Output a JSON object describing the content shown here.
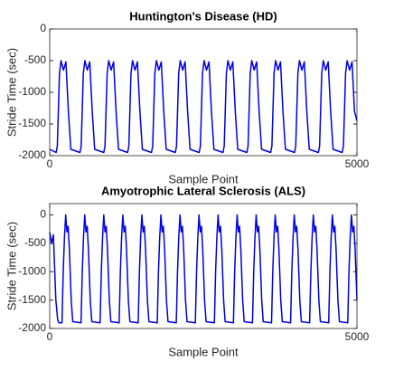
{
  "chart_data": [
    {
      "type": "line",
      "title": "Huntington's Disease (HD)",
      "xlabel": "Sample Point",
      "ylabel": "Stride Time (sec)",
      "xlim": [
        0,
        5000
      ],
      "xticks": [
        0,
        5000
      ],
      "ylim": [
        -2000,
        0
      ],
      "yticks": [
        -2000,
        -1500,
        -1000,
        -500,
        0
      ],
      "series": [
        {
          "color": "#0000e6",
          "x": [
            0,
            104,
            124,
            159,
            184,
            224,
            264,
            304,
            344,
            492,
            512,
            547,
            572,
            612,
            652,
            692,
            732,
            880,
            900,
            935,
            960,
            1000,
            1040,
            1080,
            1120,
            1268,
            1288,
            1323,
            1348,
            1388,
            1428,
            1468,
            1508,
            1656,
            1676,
            1711,
            1736,
            1776,
            1816,
            1856,
            1896,
            2044,
            2064,
            2099,
            2124,
            2164,
            2204,
            2244,
            2284,
            2432,
            2452,
            2487,
            2512,
            2552,
            2592,
            2632,
            2672,
            2820,
            2840,
            2875,
            2900,
            2940,
            2980,
            3020,
            3060,
            3208,
            3228,
            3263,
            3288,
            3328,
            3368,
            3408,
            3448,
            3596,
            3616,
            3651,
            3676,
            3716,
            3756,
            3796,
            3836,
            3984,
            4004,
            4039,
            4064,
            4104,
            4144,
            4184,
            4224,
            4372,
            4392,
            4427,
            4452,
            4492,
            4532,
            4572,
            4612,
            4760,
            4780,
            4815,
            4840,
            4880,
            4920,
            4960,
            5000
          ],
          "values": [
            -1900,
            -1950,
            -1850,
            -700,
            -500,
            -650,
            -520,
            -1300,
            -1900,
            -1950,
            -1850,
            -700,
            -500,
            -650,
            -520,
            -1300,
            -1900,
            -1950,
            -1850,
            -700,
            -500,
            -650,
            -520,
            -1300,
            -1900,
            -1950,
            -1850,
            -700,
            -500,
            -650,
            -520,
            -1300,
            -1900,
            -1950,
            -1850,
            -700,
            -500,
            -650,
            -520,
            -1300,
            -1900,
            -1950,
            -1850,
            -700,
            -500,
            -650,
            -520,
            -1300,
            -1900,
            -1950,
            -1850,
            -700,
            -500,
            -650,
            -520,
            -1300,
            -1900,
            -1950,
            -1850,
            -700,
            -500,
            -650,
            -520,
            -1300,
            -1900,
            -1950,
            -1850,
            -700,
            -500,
            -650,
            -520,
            -1300,
            -1900,
            -1950,
            -1850,
            -700,
            -500,
            -650,
            -520,
            -1300,
            -1900,
            -1950,
            -1850,
            -700,
            -500,
            -650,
            -520,
            -1300,
            -1900,
            -1950,
            -1850,
            -700,
            -500,
            -650,
            -520,
            -1300,
            -1900,
            -1950,
            -1850,
            -700,
            -500,
            -650,
            -520,
            -1300,
            -1450
          ]
        }
      ]
    },
    {
      "type": "line",
      "title": "Amyotrophic Lateral Sclerosis (ALS)",
      "xlabel": "Sample Point",
      "ylabel": "Stride Time (sec)",
      "xlim": [
        0,
        5000
      ],
      "xticks": [
        0,
        5000
      ],
      "ylim": [
        -2000,
        200
      ],
      "yticks": [
        -2000,
        -1500,
        -1000,
        -500,
        0
      ],
      "series": [
        {
          "color": "#0000e6",
          "x": [
            0,
            30,
            60,
            100,
            130,
            150,
            200,
            220,
            240,
            260,
            280,
            300,
            320,
            350,
            375,
            510,
            530,
            550,
            570,
            590,
            610,
            630,
            660,
            685,
            820,
            840,
            860,
            880,
            900,
            920,
            940,
            970,
            995,
            1130,
            1150,
            1170,
            1190,
            1210,
            1230,
            1250,
            1280,
            1305,
            1440,
            1460,
            1480,
            1500,
            1520,
            1540,
            1560,
            1590,
            1615,
            1750,
            1770,
            1790,
            1810,
            1830,
            1850,
            1870,
            1900,
            1925,
            2060,
            2080,
            2100,
            2120,
            2140,
            2160,
            2180,
            2210,
            2235,
            2370,
            2390,
            2410,
            2430,
            2450,
            2470,
            2490,
            2520,
            2545,
            2680,
            2700,
            2720,
            2740,
            2760,
            2780,
            2800,
            2830,
            2855,
            2990,
            3010,
            3030,
            3050,
            3070,
            3090,
            3110,
            3140,
            3165,
            3300,
            3320,
            3340,
            3360,
            3380,
            3400,
            3420,
            3450,
            3475,
            3610,
            3630,
            3650,
            3670,
            3690,
            3710,
            3730,
            3760,
            3785,
            3920,
            3940,
            3960,
            3980,
            4000,
            4020,
            4040,
            4070,
            4095,
            4230,
            4250,
            4270,
            4290,
            4310,
            4330,
            4350,
            4380,
            4405,
            4540,
            4560,
            4580,
            4600,
            4620,
            4640,
            4660,
            4690,
            4715,
            4850,
            4870,
            4890,
            4910,
            4930,
            4950,
            4970,
            5000
          ],
          "values": [
            -300,
            -500,
            -350,
            -1500,
            -1850,
            -1900,
            -1900,
            -1000,
            -400,
            0,
            -300,
            -200,
            -600,
            -1500,
            -1880,
            -1900,
            -1000,
            -400,
            0,
            -300,
            -200,
            -600,
            -1500,
            -1880,
            -1900,
            -1000,
            -400,
            0,
            -300,
            -200,
            -600,
            -1500,
            -1880,
            -1900,
            -1000,
            -400,
            0,
            -300,
            -200,
            -600,
            -1500,
            -1880,
            -1900,
            -1000,
            -400,
            0,
            -300,
            -200,
            -600,
            -1500,
            -1880,
            -1900,
            -1000,
            -400,
            0,
            -300,
            -200,
            -600,
            -1500,
            -1880,
            -1900,
            -1000,
            -400,
            0,
            -300,
            -200,
            -600,
            -1500,
            -1880,
            -1900,
            -1000,
            -400,
            0,
            -300,
            -200,
            -600,
            -1500,
            -1880,
            -1900,
            -1000,
            -400,
            0,
            -300,
            -200,
            -600,
            -1500,
            -1880,
            -1900,
            -1000,
            -400,
            0,
            -300,
            -200,
            -600,
            -1500,
            -1880,
            -1900,
            -1000,
            -400,
            0,
            -300,
            -200,
            -600,
            -1500,
            -1880,
            -1900,
            -1000,
            -400,
            0,
            -300,
            -200,
            -600,
            -1500,
            -1880,
            -1900,
            -1000,
            -400,
            0,
            -300,
            -200,
            -600,
            -1500,
            -1880,
            -1900,
            -1000,
            -400,
            0,
            -300,
            -200,
            -600,
            -1500,
            -1880,
            -1900,
            -1000,
            -400,
            0,
            -300,
            -200,
            -600,
            -1500,
            -1880,
            -1900,
            -1000,
            -400,
            0,
            -300,
            -200,
            -600,
            -1500
          ]
        }
      ]
    }
  ]
}
